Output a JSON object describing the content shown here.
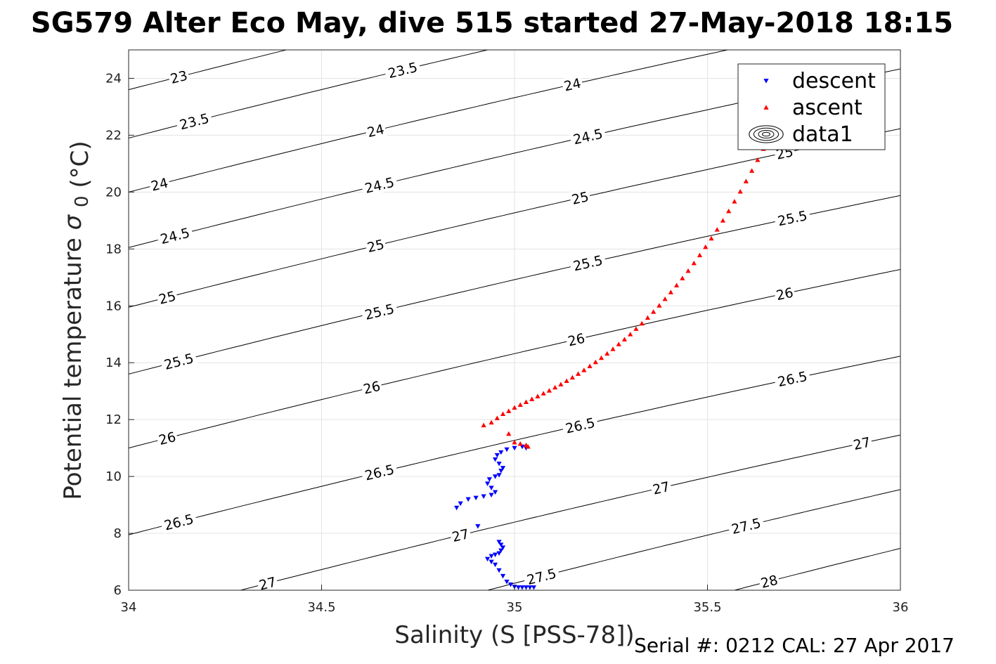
{
  "chart_data": {
    "type": "scatter",
    "title": "SG579 Alter Eco May, dive 515 started 27-May-2018 18:15",
    "xlabel": "Salinity (S [PSS-78])",
    "ylabel": "Potential temperature",
    "ylabel_symbol": "σ",
    "ylabel_sub": "0",
    "ylabel_unit": "(°C)",
    "footer": "Serial #: 0212  CAL: 27 Apr 2017",
    "xlim": [
      34,
      36
    ],
    "ylim": [
      6,
      25
    ],
    "xticks": [
      "34",
      "34.5",
      "35",
      "35.5",
      "36"
    ],
    "yticks": [
      "6",
      "8",
      "10",
      "12",
      "14",
      "16",
      "18",
      "20",
      "22",
      "24"
    ],
    "grid": true,
    "legend_position": "top-right",
    "legend": [
      {
        "label": "descent",
        "marker": "down-triangle",
        "color": "#0000ff"
      },
      {
        "label": "ascent",
        "marker": "up-triangle",
        "color": "#ff0000"
      },
      {
        "label": "data1",
        "marker": "contour",
        "color": "#000000"
      }
    ],
    "contours": [
      {
        "level": "23",
        "s0": 34,
        "t0": 23.6,
        "labels": [
          {
            "text": "23",
            "s": 34.13
          }
        ]
      },
      {
        "level": "23.5",
        "s0": 34,
        "t0": 21.9,
        "labels": [
          {
            "text": "23.5",
            "s": 34.17
          },
          {
            "text": "23.5",
            "s": 34.71
          }
        ]
      },
      {
        "level": "24",
        "s0": 34,
        "t0": 20.0,
        "labels": [
          {
            "text": "24",
            "s": 34.08
          },
          {
            "text": "24",
            "s": 34.64
          },
          {
            "text": "24",
            "s": 35.15
          },
          {
            "text": "24",
            "s": 35.7
          }
        ]
      },
      {
        "level": "24.5",
        "s0": 34,
        "t0": 18.05,
        "labels": [
          {
            "text": "24.5",
            "s": 34.12
          },
          {
            "text": "24.5",
            "s": 34.65
          },
          {
            "text": "24.5",
            "s": 35.19
          }
        ]
      },
      {
        "level": "25",
        "s0": 34,
        "t0": 15.95,
        "labels": [
          {
            "text": "25",
            "s": 34.1
          },
          {
            "text": "25",
            "s": 34.64
          },
          {
            "text": "25",
            "s": 35.17
          },
          {
            "text": "25",
            "s": 35.7
          }
        ]
      },
      {
        "level": "25.5",
        "s0": 34,
        "t0": 13.6,
        "labels": [
          {
            "text": "25.5",
            "s": 34.13
          },
          {
            "text": "25.5",
            "s": 34.65
          },
          {
            "text": "25.5",
            "s": 35.19
          },
          {
            "text": "25.5",
            "s": 35.72
          }
        ]
      },
      {
        "level": "26",
        "s0": 34,
        "t0": 11.0,
        "labels": [
          {
            "text": "26",
            "s": 34.1
          },
          {
            "text": "26",
            "s": 34.63
          },
          {
            "text": "26",
            "s": 35.16
          },
          {
            "text": "26",
            "s": 35.7
          }
        ]
      },
      {
        "level": "26.5",
        "s0": 34,
        "t0": 7.95,
        "labels": [
          {
            "text": "26.5",
            "s": 34.13
          },
          {
            "text": "26.5",
            "s": 34.65
          },
          {
            "text": "26.5",
            "s": 35.17
          },
          {
            "text": "26.5",
            "s": 35.72
          }
        ]
      },
      {
        "level": "27",
        "s0": 34.29,
        "t0": 6.0,
        "labels": [
          {
            "text": "27",
            "s": 34.36
          },
          {
            "text": "27",
            "s": 34.86
          },
          {
            "text": "27",
            "s": 35.38
          },
          {
            "text": "27",
            "s": 35.9
          }
        ]
      },
      {
        "level": "27.5",
        "s0": 34.93,
        "t0": 6.0,
        "labels": [
          {
            "text": "27.5",
            "s": 35.07
          },
          {
            "text": "27.5",
            "s": 35.6
          }
        ]
      },
      {
        "level": "28",
        "s0": 35.57,
        "t0": 6.0,
        "labels": [
          {
            "text": "28",
            "s": 35.66
          }
        ]
      }
    ],
    "contour_slope": 3.5,
    "series": [
      {
        "name": "descent",
        "marker": "down-triangle",
        "color": "#0000ff",
        "points": [
          [
            35.05,
            6.1
          ],
          [
            35.04,
            6.1
          ],
          [
            35.03,
            6.1
          ],
          [
            35.02,
            6.1
          ],
          [
            35.01,
            6.1
          ],
          [
            35.0,
            6.12
          ],
          [
            34.99,
            6.2
          ],
          [
            34.98,
            6.3
          ],
          [
            34.97,
            6.5
          ],
          [
            34.96,
            6.7
          ],
          [
            34.95,
            6.9
          ],
          [
            34.94,
            7.0
          ],
          [
            34.93,
            7.1
          ],
          [
            34.94,
            7.2
          ],
          [
            34.95,
            7.25
          ],
          [
            34.96,
            7.3
          ],
          [
            34.965,
            7.4
          ],
          [
            34.97,
            7.5
          ],
          [
            34.965,
            7.6
          ],
          [
            34.96,
            7.7
          ],
          [
            34.905,
            8.25
          ],
          [
            34.85,
            8.9
          ],
          [
            34.86,
            9.05
          ],
          [
            34.88,
            9.2
          ],
          [
            34.9,
            9.25
          ],
          [
            34.92,
            9.3
          ],
          [
            34.94,
            9.35
          ],
          [
            34.95,
            9.45
          ],
          [
            34.94,
            9.6
          ],
          [
            34.93,
            9.75
          ],
          [
            34.935,
            9.9
          ],
          [
            34.95,
            10.0
          ],
          [
            34.96,
            10.05
          ],
          [
            34.965,
            10.2
          ],
          [
            34.97,
            10.3
          ],
          [
            34.96,
            10.45
          ],
          [
            34.95,
            10.6
          ],
          [
            34.955,
            10.75
          ],
          [
            34.965,
            10.85
          ],
          [
            34.98,
            10.95
          ],
          [
            35.0,
            11.0
          ],
          [
            35.02,
            11.05
          ],
          [
            35.03,
            11.0
          ]
        ]
      },
      {
        "name": "ascent",
        "marker": "up-triangle",
        "color": "#ff0000",
        "points": [
          [
            34.92,
            11.8
          ],
          [
            34.94,
            11.9
          ],
          [
            34.955,
            12.05
          ],
          [
            34.97,
            12.2
          ],
          [
            34.985,
            12.3
          ],
          [
            35.0,
            12.42
          ],
          [
            35.015,
            12.52
          ],
          [
            35.03,
            12.62
          ],
          [
            35.045,
            12.72
          ],
          [
            35.06,
            12.82
          ],
          [
            35.075,
            12.92
          ],
          [
            35.09,
            13.02
          ],
          [
            35.105,
            13.13
          ],
          [
            35.12,
            13.24
          ],
          [
            35.135,
            13.36
          ],
          [
            35.15,
            13.48
          ],
          [
            35.165,
            13.61
          ],
          [
            35.18,
            13.74
          ],
          [
            35.195,
            13.88
          ],
          [
            35.21,
            14.02
          ],
          [
            35.225,
            14.17
          ],
          [
            35.24,
            14.32
          ],
          [
            35.255,
            14.48
          ],
          [
            35.27,
            14.65
          ],
          [
            35.285,
            14.82
          ],
          [
            35.3,
            15.0
          ],
          [
            35.315,
            15.19
          ],
          [
            35.33,
            15.38
          ],
          [
            35.345,
            15.58
          ],
          [
            35.36,
            15.79
          ],
          [
            35.375,
            16.01
          ],
          [
            35.39,
            16.24
          ],
          [
            35.405,
            16.48
          ],
          [
            35.42,
            16.72
          ],
          [
            35.435,
            16.97
          ],
          [
            35.45,
            17.23
          ],
          [
            35.465,
            17.5
          ],
          [
            35.48,
            17.78
          ],
          [
            35.495,
            18.07
          ],
          [
            35.51,
            18.37
          ],
          [
            35.525,
            18.68
          ],
          [
            35.54,
            19.0
          ],
          [
            35.555,
            19.33
          ],
          [
            35.57,
            19.67
          ],
          [
            35.585,
            20.02
          ],
          [
            35.6,
            20.38
          ],
          [
            35.615,
            20.75
          ],
          [
            35.63,
            21.13
          ],
          [
            35.645,
            21.52
          ],
          [
            35.655,
            21.82
          ],
          [
            34.985,
            11.5
          ],
          [
            35.0,
            11.2
          ],
          [
            35.015,
            11.15
          ],
          [
            35.03,
            11.1
          ],
          [
            35.035,
            11.05
          ]
        ]
      }
    ]
  }
}
